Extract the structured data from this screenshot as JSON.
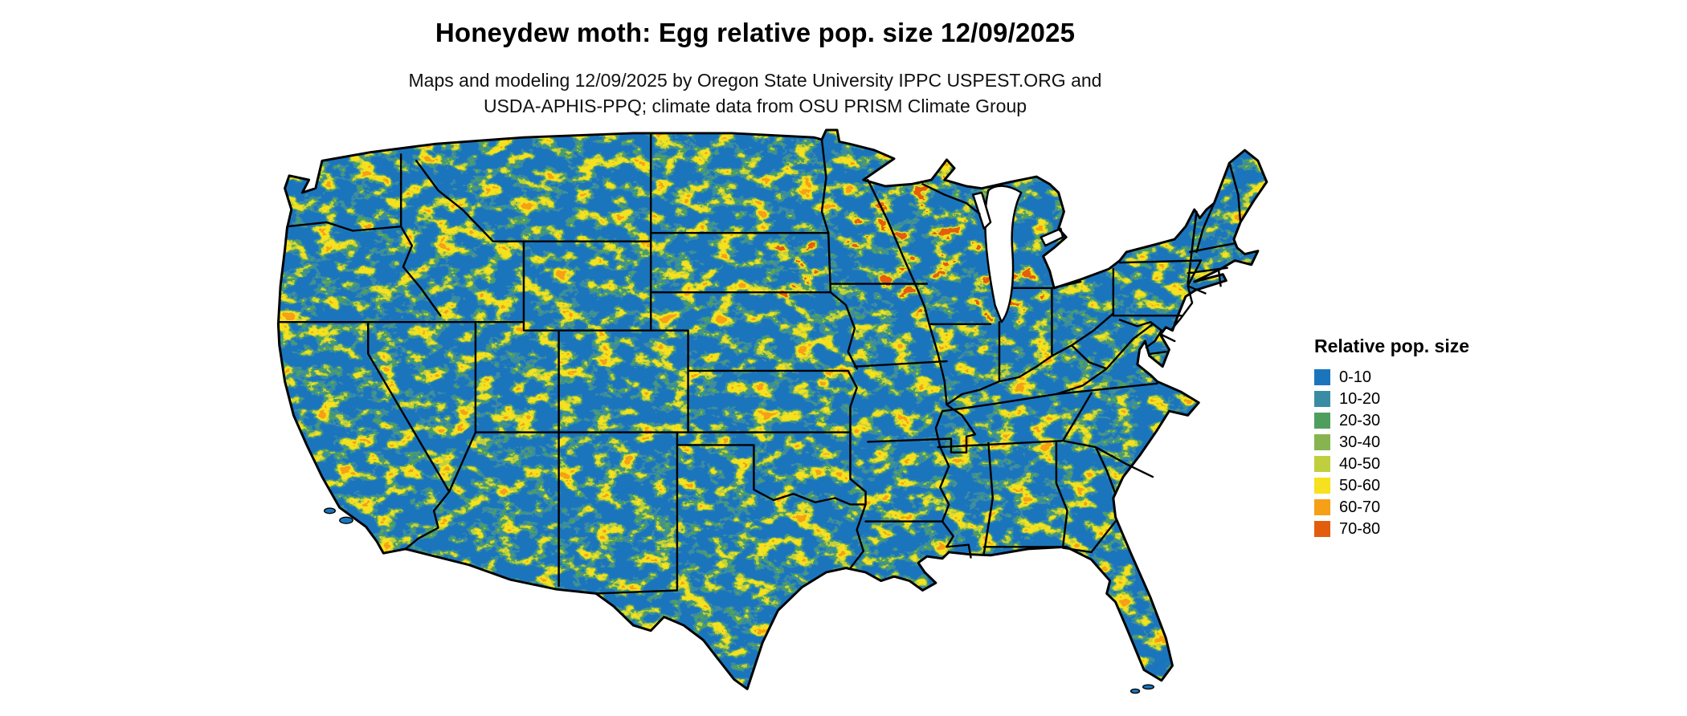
{
  "page": {
    "background": "#ffffff"
  },
  "header": {
    "title": "Honeydew moth: Egg relative pop. size 12/09/2025",
    "subtitle_line1": "Maps and modeling 12/09/2025 by Oregon State University IPPC USPEST.ORG and",
    "subtitle_line2": "USDA-APHIS-PPQ; climate data from OSU PRISM Climate Group"
  },
  "map": {
    "region": "Contiguous United States",
    "base_color": "#1b75bc",
    "border_color": "#000000",
    "water_color": "#ffffff"
  },
  "legend": {
    "title": "Relative pop. size",
    "items": [
      {
        "label": "0-10",
        "color": "#1b75bc"
      },
      {
        "label": "10-20",
        "color": "#3a8ca4"
      },
      {
        "label": "20-30",
        "color": "#4e9f5e"
      },
      {
        "label": "30-40",
        "color": "#86b550"
      },
      {
        "label": "40-50",
        "color": "#c0cf3d"
      },
      {
        "label": "50-60",
        "color": "#f5e11e"
      },
      {
        "label": "60-70",
        "color": "#f5a016"
      },
      {
        "label": "70-80",
        "color": "#e25d0e"
      }
    ]
  },
  "chart_data": {
    "type": "heatmap",
    "subtype": "choropleth-raster-map",
    "title": "Honeydew moth: Egg relative pop. size 12/09/2025",
    "date": "12/09/2025",
    "region": "Contiguous United States with state boundaries",
    "variable": "Relative pop. size",
    "bins": [
      "0-10",
      "10-20",
      "20-30",
      "30-40",
      "40-50",
      "50-60",
      "60-70",
      "70-80"
    ],
    "bin_colors": [
      "#1b75bc",
      "#3a8ca4",
      "#4e9f5e",
      "#86b550",
      "#c0cf3d",
      "#f5e11e",
      "#f5a016",
      "#e25d0e"
    ],
    "dominant_bin": "0-10",
    "pattern_note": "Mostly low (blue) values with scattered yellow-orange speckled patches along mountains, river valleys, upper Midwest and Southeast",
    "legend_position": "right"
  }
}
